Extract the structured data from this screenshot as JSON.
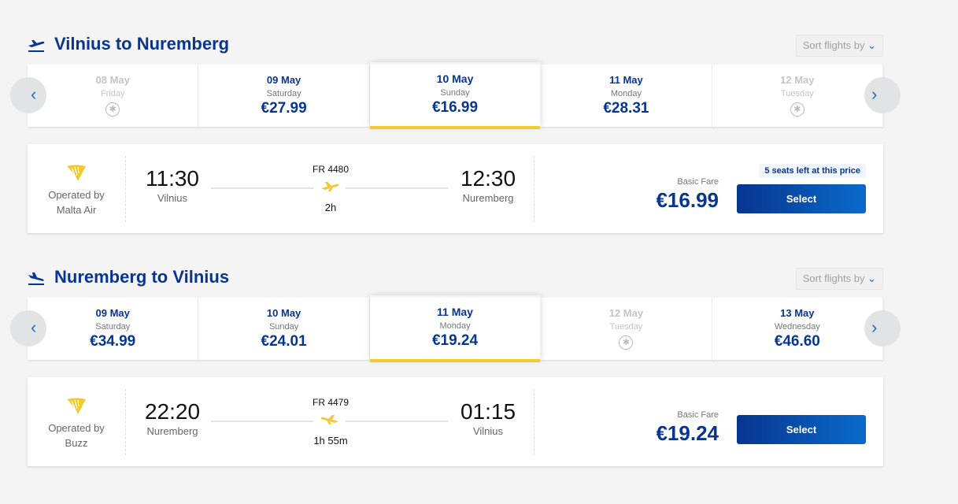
{
  "sections": [
    {
      "title": "Vilnius to Nuremberg",
      "icon": "takeoff-icon",
      "sort_label": "Sort flights by",
      "days": [
        {
          "date": "08 May",
          "weekday": "Friday",
          "price": null,
          "available": false,
          "selected": false
        },
        {
          "date": "09 May",
          "weekday": "Saturday",
          "price": "€27.99",
          "available": true,
          "selected": false
        },
        {
          "date": "10 May",
          "weekday": "Sunday",
          "price": "€16.99",
          "available": true,
          "selected": true
        },
        {
          "date": "11 May",
          "weekday": "Monday",
          "price": "€28.31",
          "available": true,
          "selected": false
        },
        {
          "date": "12 May",
          "weekday": "Tuesday",
          "price": null,
          "available": false,
          "selected": false
        }
      ],
      "flight": {
        "operated_by": "Operated by",
        "operator": "Malta Air",
        "dep_time": "11:30",
        "dep_city": "Vilnius",
        "flight_no": "FR 4480",
        "duration": "2h",
        "arr_time": "12:30",
        "arr_city": "Nuremberg",
        "fare_label": "Basic Fare",
        "price": "€16.99",
        "seats_notice": "5 seats left at this price",
        "select_label": "Select"
      }
    },
    {
      "title": "Nuremberg to Vilnius",
      "icon": "landing-icon",
      "sort_label": "Sort flights by",
      "days": [
        {
          "date": "09 May",
          "weekday": "Saturday",
          "price": "€34.99",
          "available": true,
          "selected": false
        },
        {
          "date": "10 May",
          "weekday": "Sunday",
          "price": "€24.01",
          "available": true,
          "selected": false
        },
        {
          "date": "11 May",
          "weekday": "Monday",
          "price": "€19.24",
          "available": true,
          "selected": true
        },
        {
          "date": "12 May",
          "weekday": "Tuesday",
          "price": null,
          "available": false,
          "selected": false
        },
        {
          "date": "13 May",
          "weekday": "Wednesday",
          "price": "€46.60",
          "available": true,
          "selected": false
        }
      ],
      "flight": {
        "operated_by": "Operated by",
        "operator": "Buzz",
        "dep_time": "22:20",
        "dep_city": "Nuremberg",
        "flight_no": "FR 4479",
        "duration": "1h 55m",
        "arr_time": "01:15",
        "arr_city": "Vilnius",
        "fare_label": "Basic Fare",
        "price": "€19.24",
        "seats_notice": null,
        "select_label": "Select"
      }
    }
  ],
  "colors": {
    "brand": "#073590",
    "accent": "#f1c933",
    "link": "#1e6cc4"
  }
}
